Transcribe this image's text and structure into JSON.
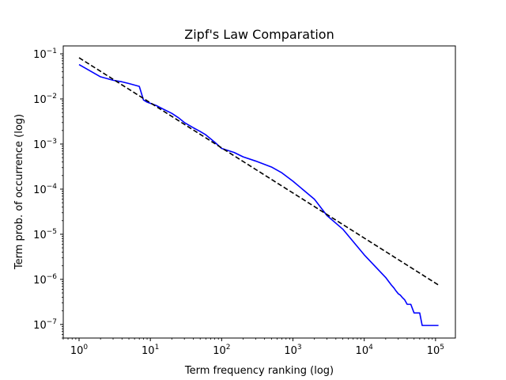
{
  "chart_data": {
    "type": "line",
    "title": "Zipf's Law Comparation",
    "xlabel": "Term frequency ranking (log)",
    "ylabel": "Term prob. of occurrence (log)",
    "xscale": "log",
    "yscale": "log",
    "xlim": [
      0.6,
      190000
    ],
    "ylim": [
      5e-08,
      0.15
    ],
    "grid": false,
    "x_ticks": [
      {
        "base": "10",
        "exp": "0",
        "value": 1
      },
      {
        "base": "10",
        "exp": "1",
        "value": 10
      },
      {
        "base": "10",
        "exp": "2",
        "value": 100
      },
      {
        "base": "10",
        "exp": "3",
        "value": 1000
      },
      {
        "base": "10",
        "exp": "4",
        "value": 10000
      },
      {
        "base": "10",
        "exp": "5",
        "value": 100000
      }
    ],
    "y_ticks": [
      {
        "base": "10",
        "exp": "−1",
        "value": 0.1
      },
      {
        "base": "10",
        "exp": "−2",
        "value": 0.01
      },
      {
        "base": "10",
        "exp": "−3",
        "value": 0.001
      },
      {
        "base": "10",
        "exp": "−4",
        "value": 0.0001
      },
      {
        "base": "10",
        "exp": "−5",
        "value": 1e-05
      },
      {
        "base": "10",
        "exp": "−6",
        "value": 1e-06
      },
      {
        "base": "10",
        "exp": "−7",
        "value": 1e-07
      }
    ],
    "series": [
      {
        "color": "#0000ff",
        "style": "solid",
        "x": [
          1,
          2,
          3,
          4,
          5,
          7,
          8,
          9,
          10,
          12,
          15,
          20,
          25,
          30,
          40,
          50,
          60,
          80,
          100,
          150,
          200,
          300,
          500,
          700,
          1000,
          2000,
          3000,
          5000,
          10000,
          20000,
          22000,
          24000,
          26000,
          28000,
          30000,
          32000,
          34000,
          37000,
          40000,
          45000,
          50000,
          60000,
          65000,
          80000,
          110000
        ],
        "y": [
          0.058,
          0.031,
          0.026,
          0.024,
          0.022,
          0.019,
          0.0095,
          0.0085,
          0.008,
          0.0072,
          0.006,
          0.0048,
          0.0038,
          0.003,
          0.0023,
          0.0019,
          0.0016,
          0.0011,
          0.0008,
          0.00065,
          0.00052,
          0.00042,
          0.00031,
          0.00023,
          0.00015,
          6e-05,
          2.6e-05,
          1.3e-05,
          3.5e-06,
          1.1e-06,
          9e-07,
          7.5e-07,
          6.5e-07,
          5.5e-07,
          4.8e-07,
          4.5e-07,
          4e-07,
          3.5e-07,
          2.8e-07,
          2.8e-07,
          1.8e-07,
          1.8e-07,
          9.5e-08,
          9.5e-08,
          9.5e-08
        ]
      },
      {
        "color": "#000000",
        "style": "dashed",
        "x": [
          1,
          110000
        ],
        "y": [
          0.082,
          7.5e-07
        ]
      }
    ]
  }
}
